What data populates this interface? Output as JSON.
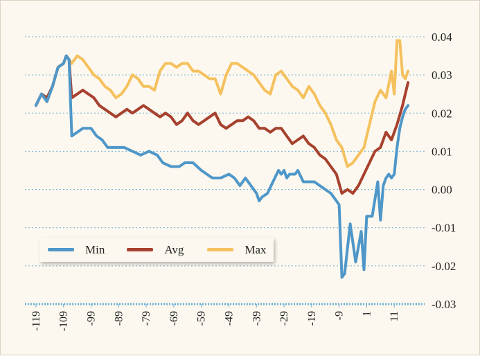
{
  "chart_data": {
    "type": "line",
    "title": "",
    "xlabel": "",
    "ylabel": "",
    "xlim": [
      -123,
      22
    ],
    "ylim": [
      -0.03,
      0.04
    ],
    "y_ticks": [
      "0.04",
      "0.03",
      "0.02",
      "0.01",
      "0.00",
      "-0.01",
      "-0.02",
      "-0.03"
    ],
    "y_tick_values": [
      0.04,
      0.03,
      0.02,
      0.01,
      0.0,
      -0.01,
      -0.02,
      -0.03
    ],
    "x_ticks": [
      "-119",
      "-109",
      "-99",
      "-89",
      "-79",
      "-69",
      "-59",
      "-49",
      "-39",
      "-29",
      "-19",
      "-9",
      "1",
      "11"
    ],
    "x_tick_values": [
      -119,
      -109,
      -99,
      -89,
      -79,
      -69,
      -59,
      -49,
      -39,
      -29,
      -19,
      -9,
      1,
      11
    ],
    "legend_position": "bottom-left",
    "series": [
      {
        "name": "Min",
        "color": "#4f97c9",
        "points": [
          [
            -119,
            0.022
          ],
          [
            -117,
            0.025
          ],
          [
            -115,
            0.023
          ],
          [
            -113,
            0.027
          ],
          [
            -111,
            0.032
          ],
          [
            -109,
            0.033
          ],
          [
            -108,
            0.035
          ],
          [
            -107,
            0.034
          ],
          [
            -106,
            0.014
          ],
          [
            -104,
            0.015
          ],
          [
            -102,
            0.016
          ],
          [
            -99,
            0.016
          ],
          [
            -97,
            0.014
          ],
          [
            -95,
            0.013
          ],
          [
            -93,
            0.011
          ],
          [
            -90,
            0.011
          ],
          [
            -87,
            0.011
          ],
          [
            -84,
            0.01
          ],
          [
            -81,
            0.009
          ],
          [
            -78,
            0.01
          ],
          [
            -75,
            0.009
          ],
          [
            -73,
            0.007
          ],
          [
            -70,
            0.006
          ],
          [
            -67,
            0.006
          ],
          [
            -65,
            0.007
          ],
          [
            -62,
            0.007
          ],
          [
            -59,
            0.005
          ],
          [
            -57,
            0.004
          ],
          [
            -55,
            0.003
          ],
          [
            -52,
            0.003
          ],
          [
            -49,
            0.004
          ],
          [
            -47,
            0.003
          ],
          [
            -45,
            0.001
          ],
          [
            -43,
            0.003
          ],
          [
            -41,
            0.001
          ],
          [
            -39,
            -0.001
          ],
          [
            -38,
            -0.003
          ],
          [
            -37,
            -0.002
          ],
          [
            -35,
            -0.001
          ],
          [
            -33,
            0.002
          ],
          [
            -31,
            0.005
          ],
          [
            -30,
            0.004
          ],
          [
            -29,
            0.005
          ],
          [
            -28,
            0.003
          ],
          [
            -27,
            0.004
          ],
          [
            -25,
            0.004
          ],
          [
            -24,
            0.005
          ],
          [
            -22,
            0.002
          ],
          [
            -20,
            0.002
          ],
          [
            -18,
            0.002
          ],
          [
            -16,
            0.001
          ],
          [
            -14,
            0.0
          ],
          [
            -12,
            -0.001
          ],
          [
            -10,
            -0.003
          ],
          [
            -9,
            -0.004
          ],
          [
            -8,
            -0.023
          ],
          [
            -7,
            -0.022
          ],
          [
            -5,
            -0.009
          ],
          [
            -3,
            -0.019
          ],
          [
            -1,
            -0.011
          ],
          [
            0,
            -0.021
          ],
          [
            1,
            -0.007
          ],
          [
            3,
            -0.007
          ],
          [
            5,
            0.002
          ],
          [
            6,
            -0.008
          ],
          [
            7,
            0.001
          ],
          [
            8,
            0.003
          ],
          [
            9,
            0.004
          ],
          [
            10,
            0.003
          ],
          [
            11,
            0.004
          ],
          [
            12,
            0.011
          ],
          [
            13,
            0.016
          ],
          [
            14,
            0.019
          ],
          [
            15,
            0.021
          ],
          [
            16,
            0.022
          ]
        ]
      },
      {
        "name": "Avg",
        "color": "#a7412f",
        "points": [
          [
            -119,
            0.022
          ],
          [
            -117,
            0.025
          ],
          [
            -115,
            0.024
          ],
          [
            -113,
            0.027
          ],
          [
            -111,
            0.032
          ],
          [
            -109,
            0.033
          ],
          [
            -108,
            0.035
          ],
          [
            -107,
            0.034
          ],
          [
            -106,
            0.024
          ],
          [
            -104,
            0.025
          ],
          [
            -102,
            0.026
          ],
          [
            -100,
            0.025
          ],
          [
            -98,
            0.024
          ],
          [
            -96,
            0.022
          ],
          [
            -94,
            0.021
          ],
          [
            -92,
            0.02
          ],
          [
            -90,
            0.019
          ],
          [
            -88,
            0.02
          ],
          [
            -86,
            0.021
          ],
          [
            -84,
            0.02
          ],
          [
            -82,
            0.021
          ],
          [
            -80,
            0.022
          ],
          [
            -78,
            0.021
          ],
          [
            -76,
            0.02
          ],
          [
            -74,
            0.019
          ],
          [
            -72,
            0.02
          ],
          [
            -70,
            0.019
          ],
          [
            -68,
            0.017
          ],
          [
            -66,
            0.018
          ],
          [
            -64,
            0.02
          ],
          [
            -62,
            0.018
          ],
          [
            -60,
            0.017
          ],
          [
            -58,
            0.018
          ],
          [
            -56,
            0.019
          ],
          [
            -54,
            0.02
          ],
          [
            -52,
            0.017
          ],
          [
            -50,
            0.016
          ],
          [
            -48,
            0.017
          ],
          [
            -46,
            0.018
          ],
          [
            -44,
            0.018
          ],
          [
            -42,
            0.019
          ],
          [
            -40,
            0.018
          ],
          [
            -38,
            0.016
          ],
          [
            -36,
            0.016
          ],
          [
            -34,
            0.015
          ],
          [
            -32,
            0.016
          ],
          [
            -30,
            0.016
          ],
          [
            -28,
            0.014
          ],
          [
            -26,
            0.012
          ],
          [
            -24,
            0.013
          ],
          [
            -22,
            0.014
          ],
          [
            -20,
            0.012
          ],
          [
            -18,
            0.011
          ],
          [
            -16,
            0.009
          ],
          [
            -14,
            0.008
          ],
          [
            -12,
            0.006
          ],
          [
            -10,
            0.004
          ],
          [
            -8,
            -0.001
          ],
          [
            -6,
            0.0
          ],
          [
            -4,
            -0.001
          ],
          [
            -2,
            0.001
          ],
          [
            0,
            0.004
          ],
          [
            2,
            0.007
          ],
          [
            4,
            0.01
          ],
          [
            6,
            0.011
          ],
          [
            8,
            0.015
          ],
          [
            10,
            0.013
          ],
          [
            12,
            0.017
          ],
          [
            14,
            0.022
          ],
          [
            15,
            0.025
          ],
          [
            16,
            0.028
          ]
        ]
      },
      {
        "name": "Max",
        "color": "#f5c15e",
        "points": [
          [
            -119,
            0.022
          ],
          [
            -117,
            0.025
          ],
          [
            -115,
            0.023
          ],
          [
            -113,
            0.027
          ],
          [
            -111,
            0.032
          ],
          [
            -109,
            0.033
          ],
          [
            -108,
            0.035
          ],
          [
            -107,
            0.034
          ],
          [
            -106,
            0.033
          ],
          [
            -104,
            0.035
          ],
          [
            -102,
            0.034
          ],
          [
            -100,
            0.032
          ],
          [
            -98,
            0.03
          ],
          [
            -96,
            0.029
          ],
          [
            -94,
            0.027
          ],
          [
            -92,
            0.026
          ],
          [
            -90,
            0.024
          ],
          [
            -88,
            0.025
          ],
          [
            -86,
            0.027
          ],
          [
            -84,
            0.03
          ],
          [
            -82,
            0.029
          ],
          [
            -80,
            0.027
          ],
          [
            -78,
            0.027
          ],
          [
            -76,
            0.026
          ],
          [
            -74,
            0.031
          ],
          [
            -72,
            0.033
          ],
          [
            -70,
            0.033
          ],
          [
            -68,
            0.032
          ],
          [
            -66,
            0.033
          ],
          [
            -64,
            0.033
          ],
          [
            -62,
            0.031
          ],
          [
            -60,
            0.031
          ],
          [
            -58,
            0.03
          ],
          [
            -56,
            0.029
          ],
          [
            -54,
            0.029
          ],
          [
            -52,
            0.025
          ],
          [
            -50,
            0.03
          ],
          [
            -48,
            0.033
          ],
          [
            -46,
            0.033
          ],
          [
            -44,
            0.032
          ],
          [
            -42,
            0.031
          ],
          [
            -40,
            0.03
          ],
          [
            -38,
            0.028
          ],
          [
            -36,
            0.026
          ],
          [
            -34,
            0.025
          ],
          [
            -32,
            0.03
          ],
          [
            -30,
            0.031
          ],
          [
            -28,
            0.029
          ],
          [
            -26,
            0.027
          ],
          [
            -24,
            0.026
          ],
          [
            -22,
            0.024
          ],
          [
            -20,
            0.027
          ],
          [
            -18,
            0.025
          ],
          [
            -16,
            0.022
          ],
          [
            -14,
            0.02
          ],
          [
            -12,
            0.017
          ],
          [
            -10,
            0.013
          ],
          [
            -8,
            0.011
          ],
          [
            -6,
            0.006
          ],
          [
            -4,
            0.007
          ],
          [
            -2,
            0.009
          ],
          [
            0,
            0.011
          ],
          [
            2,
            0.017
          ],
          [
            4,
            0.023
          ],
          [
            6,
            0.026
          ],
          [
            8,
            0.024
          ],
          [
            10,
            0.031
          ],
          [
            11,
            0.025
          ],
          [
            12,
            0.039
          ],
          [
            13,
            0.039
          ],
          [
            14,
            0.03
          ],
          [
            15,
            0.029
          ],
          [
            16,
            0.031
          ]
        ]
      }
    ]
  }
}
